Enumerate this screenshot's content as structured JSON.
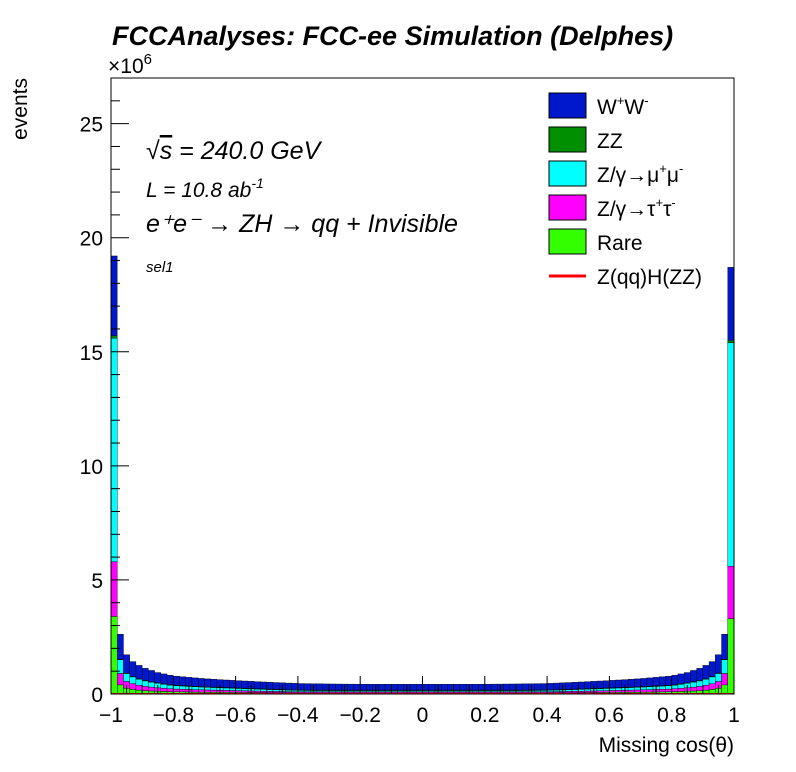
{
  "chart_data": {
    "type": "area",
    "title": "FCCAnalyses: FCC-ee Simulation (Delphes)",
    "xlabel": "Missing cos(θ)",
    "ylabel": "events",
    "y_multiplier_base": "×10",
    "y_multiplier_exp": "6",
    "xlim": [
      -1,
      1
    ],
    "ylim": [
      0,
      27
    ],
    "y_scale_factor": 1000000,
    "x_ticks": [
      "−1",
      "−0.8",
      "−0.6",
      "−0.4",
      "−0.2",
      "0",
      "0.2",
      "0.4",
      "0.6",
      "0.8",
      "1"
    ],
    "x_tick_values": [
      -1,
      -0.8,
      -0.6,
      -0.4,
      -0.2,
      0,
      0.2,
      0.4,
      0.6,
      0.8,
      1
    ],
    "y_ticks": [
      "0",
      "5",
      "10",
      "15",
      "20",
      "25"
    ],
    "y_tick_values": [
      0,
      5,
      10,
      15,
      20,
      25
    ],
    "annotations": {
      "sqrt": "√",
      "s_label": "s",
      "energy_rest": " = 240.0 GeV",
      "lumi_main": "L = 10.8 ab",
      "lumi_exp": "-1",
      "process": "e⁺e⁻ → ZH → qq + Invisible",
      "selection": "sel1"
    },
    "bins": 100,
    "edge_profile": {
      "x": [
        -0.99,
        -0.97,
        -0.95,
        -0.93,
        -0.9,
        -0.85,
        -0.8,
        -0.7,
        -0.6,
        -0.5,
        -0.4,
        -0.3,
        -0.2,
        -0.1,
        0,
        0.1,
        0.2,
        0.3,
        0.4,
        0.5,
        0.6,
        0.7,
        0.8,
        0.85,
        0.9,
        0.93,
        0.95,
        0.97,
        0.99
      ],
      "series_stacked_order": [
        "Rare",
        "Z/γ→τ⁺τ⁻",
        "Z/γ→μ⁺μ⁻",
        "ZZ",
        "W⁺W⁻"
      ],
      "rare": [
        3.4,
        0.4,
        0.25,
        0.2,
        0.15,
        0.12,
        0.1,
        0.08,
        0.07,
        0.06,
        0.05,
        0.05,
        0.05,
        0.05,
        0.05,
        0.05,
        0.05,
        0.05,
        0.05,
        0.06,
        0.07,
        0.08,
        0.1,
        0.12,
        0.15,
        0.2,
        0.25,
        0.4,
        3.3
      ],
      "tautau": [
        2.4,
        0.5,
        0.3,
        0.25,
        0.2,
        0.15,
        0.12,
        0.1,
        0.08,
        0.06,
        0.05,
        0.05,
        0.05,
        0.05,
        0.05,
        0.05,
        0.05,
        0.05,
        0.05,
        0.06,
        0.08,
        0.1,
        0.12,
        0.15,
        0.2,
        0.25,
        0.3,
        0.5,
        2.3
      ],
      "mumu": [
        9.8,
        0.6,
        0.35,
        0.3,
        0.25,
        0.2,
        0.15,
        0.12,
        0.1,
        0.08,
        0.06,
        0.05,
        0.05,
        0.05,
        0.05,
        0.05,
        0.05,
        0.05,
        0.06,
        0.08,
        0.1,
        0.12,
        0.15,
        0.2,
        0.25,
        0.3,
        0.35,
        0.6,
        9.8
      ],
      "zz": [
        0.1,
        0.02,
        0.02,
        0.02,
        0.02,
        0.02,
        0.02,
        0.02,
        0.02,
        0.02,
        0.02,
        0.02,
        0.02,
        0.02,
        0.02,
        0.02,
        0.02,
        0.02,
        0.02,
        0.02,
        0.02,
        0.02,
        0.02,
        0.02,
        0.02,
        0.02,
        0.02,
        0.02,
        0.1
      ],
      "ww": [
        3.5,
        1.1,
        0.8,
        0.65,
        0.55,
        0.45,
        0.4,
        0.35,
        0.32,
        0.3,
        0.28,
        0.27,
        0.26,
        0.26,
        0.26,
        0.26,
        0.26,
        0.27,
        0.28,
        0.3,
        0.32,
        0.35,
        0.4,
        0.45,
        0.55,
        0.65,
        0.8,
        1.1,
        3.2
      ]
    },
    "signal_line": {
      "name": "Z(qq)H(ZZ)",
      "color": "#ff0000",
      "value": 0.01
    },
    "legend_placement": "top-right",
    "grid": false,
    "series": [
      {
        "key": "ww",
        "name_main": "W",
        "name_sup1": "+",
        "name_mid": "W",
        "name_sup2": "-",
        "color": "#0018cc"
      },
      {
        "key": "zz",
        "name_main": "ZZ",
        "color": "#008f00"
      },
      {
        "key": "mumu",
        "name_main": "Z/γ→μ",
        "name_sup1": "+",
        "name_mid": "μ",
        "name_sup2": "-",
        "color": "#00ffff"
      },
      {
        "key": "tautau",
        "name_main": "Z/γ→τ",
        "name_sup1": "+",
        "name_mid": "τ",
        "name_sup2": "-",
        "color": "#ff00ff"
      },
      {
        "key": "rare",
        "name_main": "Rare",
        "color": "#33ff00"
      },
      {
        "key": "signal",
        "name_main": "Z(qq)H(ZZ)",
        "color": "#ff0000"
      }
    ]
  }
}
